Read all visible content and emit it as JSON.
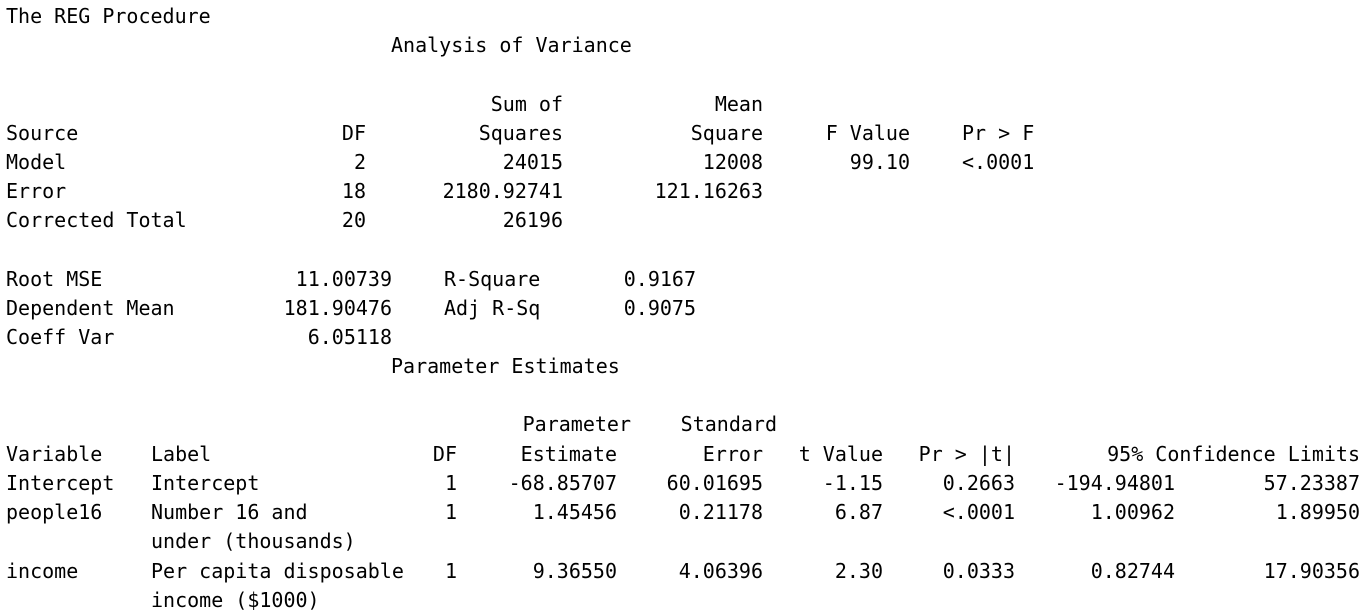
{
  "title": "The REG Procedure",
  "anova": {
    "heading": "Analysis of Variance",
    "headers": {
      "source": "Source",
      "df": "DF",
      "ss_top": "Sum of",
      "ss_bottom": "Squares",
      "ms_top": "Mean",
      "ms_bottom": "Square",
      "f": "F Value",
      "p": "Pr > F"
    },
    "rows": [
      {
        "source": "Model",
        "df": "2",
        "ss": "24015",
        "ms": "12008",
        "f": "99.10",
        "p": "<.0001"
      },
      {
        "source": "Error",
        "df": "18",
        "ss": "2180.92741",
        "ms": "121.16263",
        "f": "",
        "p": ""
      },
      {
        "source": "Corrected Total",
        "df": "20",
        "ss": "26196",
        "ms": "",
        "f": "",
        "p": ""
      }
    ]
  },
  "fit": {
    "rows": [
      {
        "label": "Root MSE",
        "value": "11.00739",
        "label2": "R-Square",
        "value2": "0.9167"
      },
      {
        "label": "Dependent Mean",
        "value": "181.90476",
        "label2": "Adj R-Sq",
        "value2": "0.9075"
      },
      {
        "label": "Coeff Var",
        "value": "6.05118",
        "label2": "",
        "value2": ""
      }
    ]
  },
  "params": {
    "heading": "Parameter Estimates",
    "headers": {
      "variable": "Variable",
      "label": "Label",
      "df": "DF",
      "est_top": "Parameter",
      "est_bottom": "Estimate",
      "se_top": "Standard",
      "se_bottom": "Error",
      "t": "t Value",
      "p": "Pr > |t|",
      "ci": "95% Confidence Limits"
    },
    "rows": [
      {
        "variable": "Intercept",
        "label": "Intercept",
        "label2": "",
        "df": "1",
        "est": "-68.85707",
        "se": "60.01695",
        "t": "-1.15",
        "p": "0.2663",
        "lcl": "-194.94801",
        "ucl": "57.23387"
      },
      {
        "variable": "people16",
        "label": "Number 16 and",
        "label2": "under (thousands)",
        "df": "1",
        "est": "1.45456",
        "se": "0.21178",
        "t": "6.87",
        "p": "<.0001",
        "lcl": "1.00962",
        "ucl": "1.89950"
      },
      {
        "variable": "income",
        "label": "Per capita disposable",
        "label2": "income ($1000)",
        "df": "1",
        "est": "9.36550",
        "se": "4.06396",
        "t": "2.30",
        "p": "0.0333",
        "lcl": "0.82744",
        "ucl": "17.90356"
      }
    ]
  }
}
